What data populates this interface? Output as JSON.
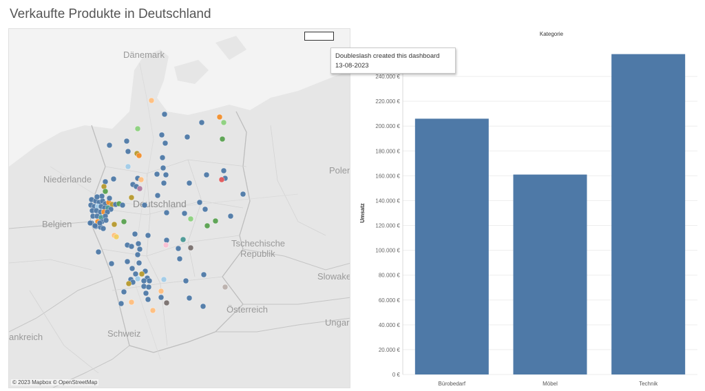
{
  "title": "Verkaufte Produkte in Deutschland",
  "map": {
    "labels": {
      "daenemark": "Dänemark",
      "niederlande": "Niederlande",
      "deutschland": "Deutschland",
      "belgien": "Belgien",
      "polen": "Polen",
      "tschechische": "Tschechische",
      "republik": "Republik",
      "slowakei": "Slowake",
      "oesterreich": "Österreich",
      "ungarn": "Ungarn",
      "schweiz": "Schweiz",
      "frankreich": "ankreich"
    },
    "attribution": "© 2023 Mapbox © OpenStreetMap",
    "colors": {
      "blue": "#4e79a7",
      "orange": "#f28e2b",
      "lightorange": "#ffbe7d",
      "green": "#59a14f",
      "lightgreen": "#8cd17d",
      "olive": "#b6992d",
      "lightblue": "#a0cbe8",
      "red": "#e15759",
      "pink": "#fabfd2",
      "purple": "#b07aa1",
      "gray": "#79706e",
      "lightgray": "#bab0ac",
      "teal": "#499894",
      "yellow": "#f1ce63"
    }
  },
  "tooltip": {
    "line1": "Doubleslash created this dashboard",
    "line2": "13-08-2023"
  },
  "chart_data": {
    "type": "bar",
    "title": "Kategorie",
    "categories": [
      "Bürobedarf",
      "Möbel",
      "Technik"
    ],
    "values": [
      206000,
      161000,
      258000
    ],
    "ylabel": "Umsatz",
    "ylim": [
      0,
      260000
    ],
    "yticks": [
      0,
      20000,
      40000,
      60000,
      80000,
      100000,
      120000,
      140000,
      160000,
      180000,
      200000,
      220000,
      240000
    ],
    "ytick_labels": [
      "0 €",
      "20.000 €",
      "40.000 €",
      "60.000 €",
      "80.000 €",
      "100.000 €",
      "120.000 €",
      "140.000 €",
      "160.000 €",
      "180.000 €",
      "200.000 €",
      "220.000 €",
      "240.000 €"
    ],
    "bar_color": "#4e79a7",
    "grid": true
  }
}
